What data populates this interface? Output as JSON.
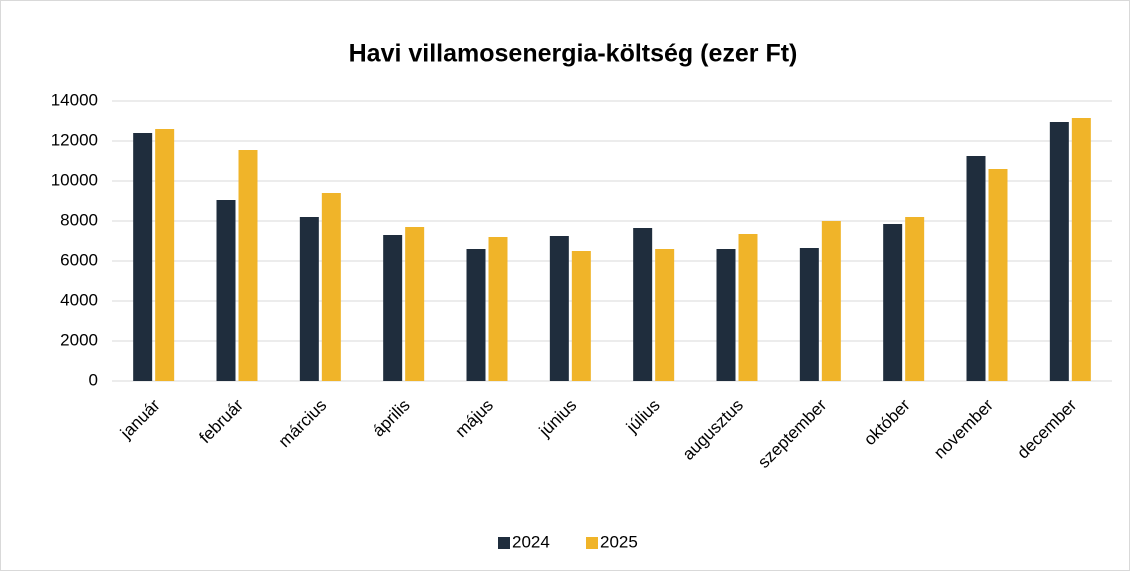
{
  "chart_data": {
    "type": "bar",
    "title": "Havi villamosenergia-költség (ezer Ft)",
    "categories": [
      "január",
      "február",
      "március",
      "április",
      "május",
      "június",
      "július",
      "augusztus",
      "szeptember",
      "október",
      "november",
      "december"
    ],
    "series": [
      {
        "name": "2024",
        "color": "#1f2d3d",
        "values": [
          12400,
          9050,
          8200,
          7300,
          6600,
          7250,
          7650,
          6600,
          6650,
          7850,
          11250,
          12950
        ]
      },
      {
        "name": "2025",
        "color": "#f0b429",
        "values": [
          12600,
          11550,
          9400,
          7700,
          7200,
          6500,
          6600,
          7350,
          8000,
          8200,
          10600,
          13150
        ]
      }
    ],
    "ylim": [
      0,
      14000
    ],
    "yticks": [
      0,
      2000,
      4000,
      6000,
      8000,
      10000,
      12000,
      14000
    ],
    "grid": true,
    "legend": "bottom"
  }
}
